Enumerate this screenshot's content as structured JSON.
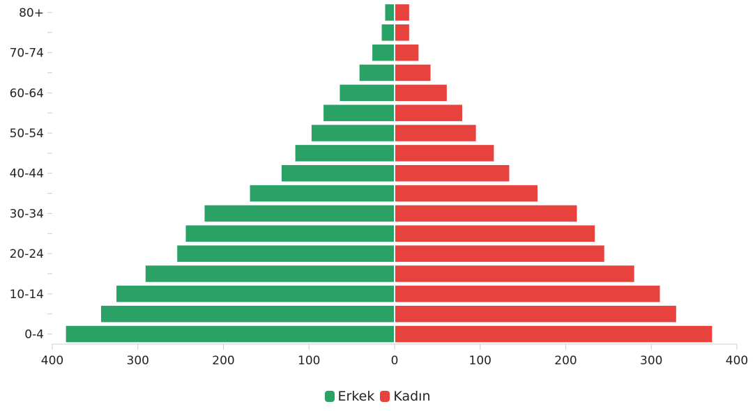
{
  "chart_data": {
    "type": "bar",
    "orientation": "horizontal",
    "layout": "population-pyramid",
    "categories": [
      "0-4",
      "5-9",
      "10-14",
      "15-19",
      "20-24",
      "25-29",
      "30-34",
      "35-39",
      "40-44",
      "45-49",
      "50-54",
      "55-59",
      "60-64",
      "65-69",
      "70-74",
      "75-79",
      "80+"
    ],
    "category_tick_labels": [
      "0-4",
      "10-14",
      "20-24",
      "30-34",
      "40-44",
      "50-54",
      "60-64",
      "70-74",
      "80+"
    ],
    "series": [
      {
        "name": "Erkek",
        "color": "#2aa265",
        "side": "left",
        "values": [
          384,
          343,
          325,
          291,
          254,
          244,
          222,
          169,
          132,
          116,
          97,
          83,
          64,
          41,
          26,
          15,
          11
        ]
      },
      {
        "name": "Kadın",
        "color": "#e8423f",
        "side": "right",
        "values": [
          371,
          329,
          310,
          280,
          245,
          234,
          213,
          167,
          134,
          116,
          95,
          79,
          61,
          42,
          28,
          17,
          17
        ]
      }
    ],
    "xlim": [
      -400,
      400
    ],
    "x_ticks": [
      -400,
      -300,
      -200,
      -100,
      0,
      100,
      200,
      300,
      400
    ],
    "x_tick_labels": [
      "400",
      "300",
      "200",
      "100",
      "0",
      "100",
      "200",
      "300",
      "400"
    ],
    "title": "",
    "xlabel": "",
    "ylabel": "",
    "grid": false,
    "legend_position": "bottom-center"
  }
}
